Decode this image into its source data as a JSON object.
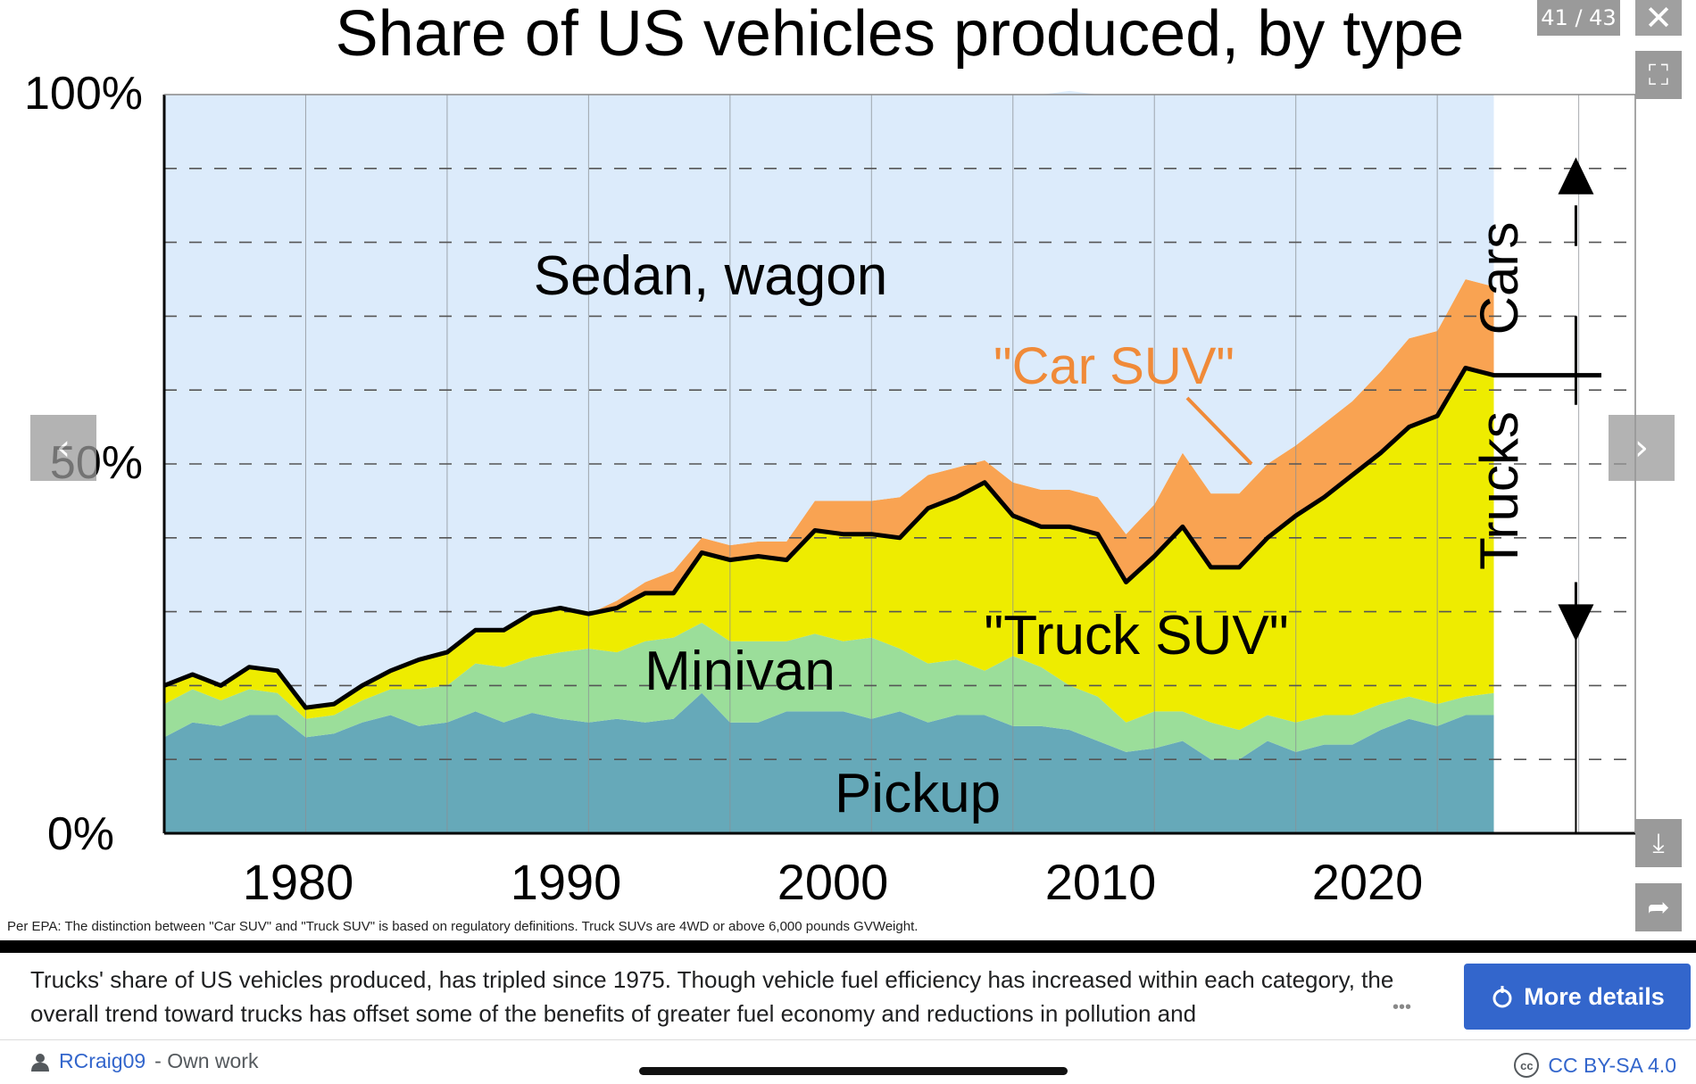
{
  "chart_data": {
    "type": "area",
    "title": "Share of US vehicles produced, by type",
    "y_tick_labels": [
      "100%",
      "50%",
      "0%"
    ],
    "x_tick_labels": [
      "1980",
      "1990",
      "2000",
      "2010",
      "2020"
    ],
    "xlim": [
      1975,
      2027
    ],
    "ylim": [
      0,
      100
    ],
    "grid": true,
    "stacked": true,
    "x": [
      1975,
      1976,
      1977,
      1978,
      1979,
      1980,
      1981,
      1982,
      1983,
      1984,
      1985,
      1986,
      1987,
      1988,
      1989,
      1990,
      1991,
      1992,
      1993,
      1994,
      1995,
      1996,
      1997,
      1998,
      1999,
      2000,
      2001,
      2002,
      2003,
      2004,
      2005,
      2006,
      2007,
      2008,
      2009,
      2010,
      2011,
      2012,
      2013,
      2014,
      2015,
      2016,
      2017,
      2018,
      2019,
      2020,
      2021,
      2022
    ],
    "series": [
      {
        "name": "Pickup",
        "color": "#66a9b9",
        "values": [
          13,
          15,
          14.5,
          16,
          16,
          13,
          13.5,
          15,
          16,
          14.5,
          15,
          16.5,
          15,
          16.3,
          15.5,
          15,
          15.5,
          15,
          15.5,
          19,
          15,
          15,
          16.5,
          16.5,
          16.5,
          15.5,
          16.5,
          15,
          16,
          16,
          14.5,
          14.5,
          14,
          12.5,
          11,
          11.5,
          12.5,
          10,
          10,
          12.5,
          11,
          12,
          12,
          14,
          15.5,
          14.5,
          16,
          16
        ]
      },
      {
        "name": "Minivan",
        "color": "#9bde9a",
        "values": [
          4.5,
          4.5,
          3.5,
          3.5,
          3,
          2.5,
          2.5,
          3,
          3.5,
          5,
          5,
          6.5,
          7.5,
          7.5,
          9,
          10,
          9,
          11,
          11,
          9.5,
          11,
          11,
          9.5,
          10.5,
          9.5,
          11,
          8.5,
          8,
          7.5,
          6,
          9.5,
          8,
          6,
          6,
          4,
          5,
          4,
          5,
          4,
          3.5,
          4,
          4,
          4,
          3.5,
          3,
          3,
          2.5,
          3
        ]
      },
      {
        "name": "\"Truck SUV\"",
        "color": "#eeec00",
        "values": [
          2.5,
          2,
          2,
          3,
          3,
          1.5,
          1.5,
          2,
          2.5,
          4,
          4.5,
          4.5,
          5,
          6,
          6,
          4.7,
          6,
          6.5,
          6,
          9.5,
          11,
          11.5,
          11,
          14,
          14.5,
          14,
          15,
          21,
          22,
          25.5,
          19,
          19,
          21.5,
          22,
          19,
          21,
          25,
          21,
          22,
          24,
          28,
          29.5,
          32.5,
          34,
          36.5,
          39,
          44.5,
          43
        ]
      },
      {
        "name": "\"Car SUV\"",
        "color": "#f9a352",
        "values": [
          0,
          0,
          0,
          0,
          0,
          0,
          0,
          0,
          0,
          0,
          0,
          0,
          0,
          0,
          0,
          0,
          1,
          1.5,
          3,
          2,
          2,
          2,
          2.5,
          4,
          4.5,
          4.5,
          5.5,
          4.5,
          4,
          3,
          4.5,
          5,
          5,
          5,
          6.5,
          7,
          10,
          10,
          10,
          10,
          9.5,
          10,
          10,
          11,
          12,
          11.5,
          12,
          12
        ]
      },
      {
        "name": "Sedan, wagon",
        "color": "#dcebfb",
        "values": [
          80,
          78.5,
          80,
          77.5,
          78,
          83,
          82.5,
          80,
          78,
          76.5,
          75.5,
          72.5,
          72.5,
          70.2,
          69.5,
          70.3,
          68.5,
          66,
          64.5,
          60,
          61,
          60.5,
          60.5,
          55,
          55,
          55,
          54.5,
          51.5,
          50.5,
          49.5,
          52.5,
          53.5,
          54,
          54.5,
          59.5,
          55.5,
          48.5,
          54,
          54,
          50,
          47.5,
          44.5,
          41.5,
          37.5,
          33,
          32,
          25,
          26
        ]
      }
    ],
    "series_labels": [
      "Sedan, wagon",
      "\"Car SUV\"",
      "Minivan",
      "\"Truck SUV\"",
      "Pickup"
    ],
    "side_labels": [
      "Cars",
      "Trucks"
    ],
    "note": "Per EPA: The distinction between \"Car SUV\" and \"Truck SUV\" is based on regulatory definitions. Truck SUVs are 4WD or above 6,000 pounds GVWeight."
  },
  "ui": {
    "counter": "41 / 43",
    "close_icon": "✕",
    "fullscreen_icon": "⛶",
    "prev_icon": "‹",
    "next_icon": "›",
    "download_icon": "⤓",
    "share_icon": "➦",
    "caption": "Trucks' share of US vehicles produced, has tripled since 1975. Though vehicle fuel efficiency has increased within each category, the overall trend toward trucks has offset some of the benefits of greater fuel economy and reductions in pollution and",
    "caption_more": "•••",
    "more_details": "More details",
    "author": "RCraig09",
    "author_suffix": "- Own work",
    "license": "CC BY-SA 4.0",
    "cc_icon": "cc"
  }
}
